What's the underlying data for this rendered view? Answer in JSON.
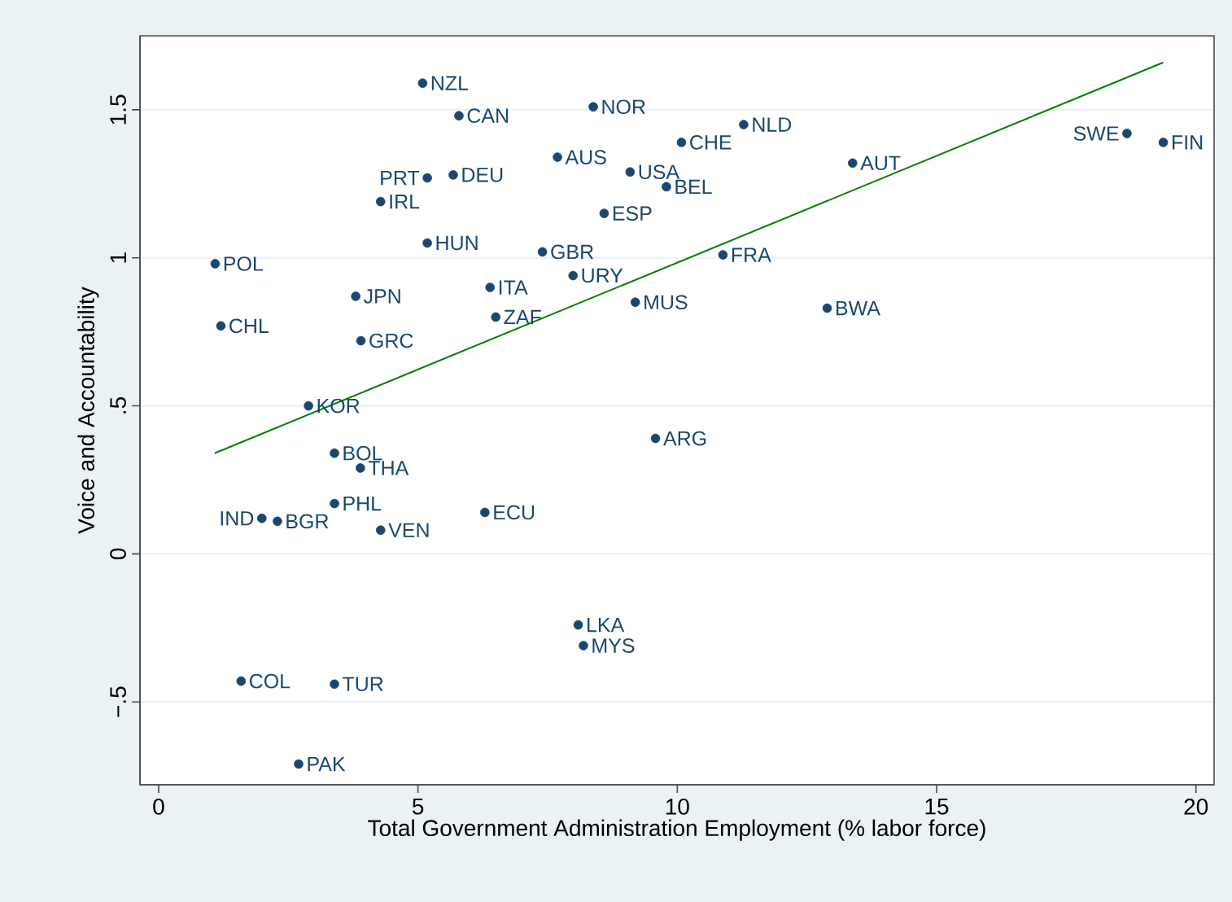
{
  "chart_data": {
    "type": "scatter",
    "xlabel": "Total Government Administration Employment (% labor force)",
    "ylabel": "Voice and Accountability",
    "xlim": [
      -0.36,
      20.35
    ],
    "ylim": [
      -0.78,
      1.75
    ],
    "xticks": [
      0,
      5,
      10,
      15,
      20
    ],
    "yticks": [
      {
        "value": -0.5,
        "label": "−.5"
      },
      0,
      {
        "value": 0.5,
        "label": ".5"
      },
      1,
      1.5
    ],
    "grid": "y",
    "series": [
      {
        "color": "#1a476f",
        "marker": "circle",
        "x": [
          5.09,
          5.79,
          8.38,
          7.69,
          9.09,
          5.18,
          5.68,
          4.28,
          8.59,
          5.18,
          7.4,
          1.09,
          6.39,
          7.99,
          3.8,
          9.19,
          1.2,
          6.5,
          3.9,
          2.89,
          10.08,
          11.28,
          9.79,
          13.38,
          18.67,
          19.37,
          10.88,
          12.89,
          9.58,
          3.39,
          3.89,
          3.39,
          1.99,
          2.29,
          4.28,
          6.29,
          8.09,
          8.19,
          1.59,
          3.39,
          2.7
        ],
        "values": [
          1.59,
          1.48,
          1.51,
          1.34,
          1.29,
          1.27,
          1.28,
          1.19,
          1.15,
          1.05,
          1.02,
          0.98,
          0.9,
          0.94,
          0.87,
          0.85,
          0.77,
          0.8,
          0.72,
          0.5,
          1.39,
          1.45,
          1.24,
          1.32,
          1.42,
          1.39,
          1.01,
          0.83,
          0.39,
          0.34,
          0.29,
          0.17,
          0.12,
          0.11,
          0.08,
          0.14,
          -0.24,
          -0.31,
          -0.43,
          -0.44,
          -0.71
        ]
      },
      {
        "type": "line",
        "color": "#008000",
        "marker": "none",
        "x": [
          1.08,
          19.37
        ],
        "values": [
          0.34,
          1.66
        ]
      }
    ],
    "annotations": [
      {
        "text": "NZL",
        "x": 5.09,
        "y": 1.59
      },
      {
        "text": "CAN",
        "x": 5.79,
        "y": 1.48
      },
      {
        "text": "NOR",
        "x": 8.38,
        "y": 1.51
      },
      {
        "text": "AUS",
        "x": 7.69,
        "y": 1.34
      },
      {
        "text": "USA",
        "x": 9.09,
        "y": 1.29
      },
      {
        "text": "PRT",
        "x": 5.18,
        "y": 1.27
      },
      {
        "text": "DEU",
        "x": 5.68,
        "y": 1.28
      },
      {
        "text": "IRL",
        "x": 4.28,
        "y": 1.19
      },
      {
        "text": "ESP",
        "x": 8.59,
        "y": 1.15
      },
      {
        "text": "HUN",
        "x": 5.18,
        "y": 1.05
      },
      {
        "text": "GBR",
        "x": 7.4,
        "y": 1.02
      },
      {
        "text": "POL",
        "x": 1.09,
        "y": 0.98
      },
      {
        "text": "ITA",
        "x": 6.39,
        "y": 0.9
      },
      {
        "text": "URY",
        "x": 7.99,
        "y": 0.94
      },
      {
        "text": "JPN",
        "x": 3.8,
        "y": 0.87
      },
      {
        "text": "MUS",
        "x": 9.19,
        "y": 0.85
      },
      {
        "text": "CHL",
        "x": 1.2,
        "y": 0.77
      },
      {
        "text": "ZAF",
        "x": 6.5,
        "y": 0.8
      },
      {
        "text": "GRC",
        "x": 3.9,
        "y": 0.72
      },
      {
        "text": "KOR",
        "x": 2.89,
        "y": 0.5
      },
      {
        "text": "CHE",
        "x": 10.08,
        "y": 1.39
      },
      {
        "text": "NLD",
        "x": 11.28,
        "y": 1.45
      },
      {
        "text": "BEL",
        "x": 9.79,
        "y": 1.24
      },
      {
        "text": "AUT",
        "x": 13.38,
        "y": 1.32
      },
      {
        "text": "SWE",
        "x": 18.67,
        "y": 1.42
      },
      {
        "text": "FIN",
        "x": 19.37,
        "y": 1.39
      },
      {
        "text": "FRA",
        "x": 10.88,
        "y": 1.01
      },
      {
        "text": "BWA",
        "x": 12.89,
        "y": 0.83
      },
      {
        "text": "ARG",
        "x": 9.58,
        "y": 0.39
      },
      {
        "text": "BOL",
        "x": 3.39,
        "y": 0.34
      },
      {
        "text": "THA",
        "x": 3.89,
        "y": 0.29
      },
      {
        "text": "PHL",
        "x": 3.39,
        "y": 0.17
      },
      {
        "text": "IND",
        "x": 1.99,
        "y": 0.12
      },
      {
        "text": "BGR",
        "x": 2.29,
        "y": 0.11
      },
      {
        "text": "VEN",
        "x": 4.28,
        "y": 0.08
      },
      {
        "text": "ECU",
        "x": 6.29,
        "y": 0.14
      },
      {
        "text": "LKA",
        "x": 8.09,
        "y": -0.24
      },
      {
        "text": "MYS",
        "x": 8.19,
        "y": -0.31
      },
      {
        "text": "COL",
        "x": 1.59,
        "y": -0.43
      },
      {
        "text": "TUR",
        "x": 3.39,
        "y": -0.44
      },
      {
        "text": "PAK",
        "x": 2.7,
        "y": -0.71
      }
    ]
  }
}
